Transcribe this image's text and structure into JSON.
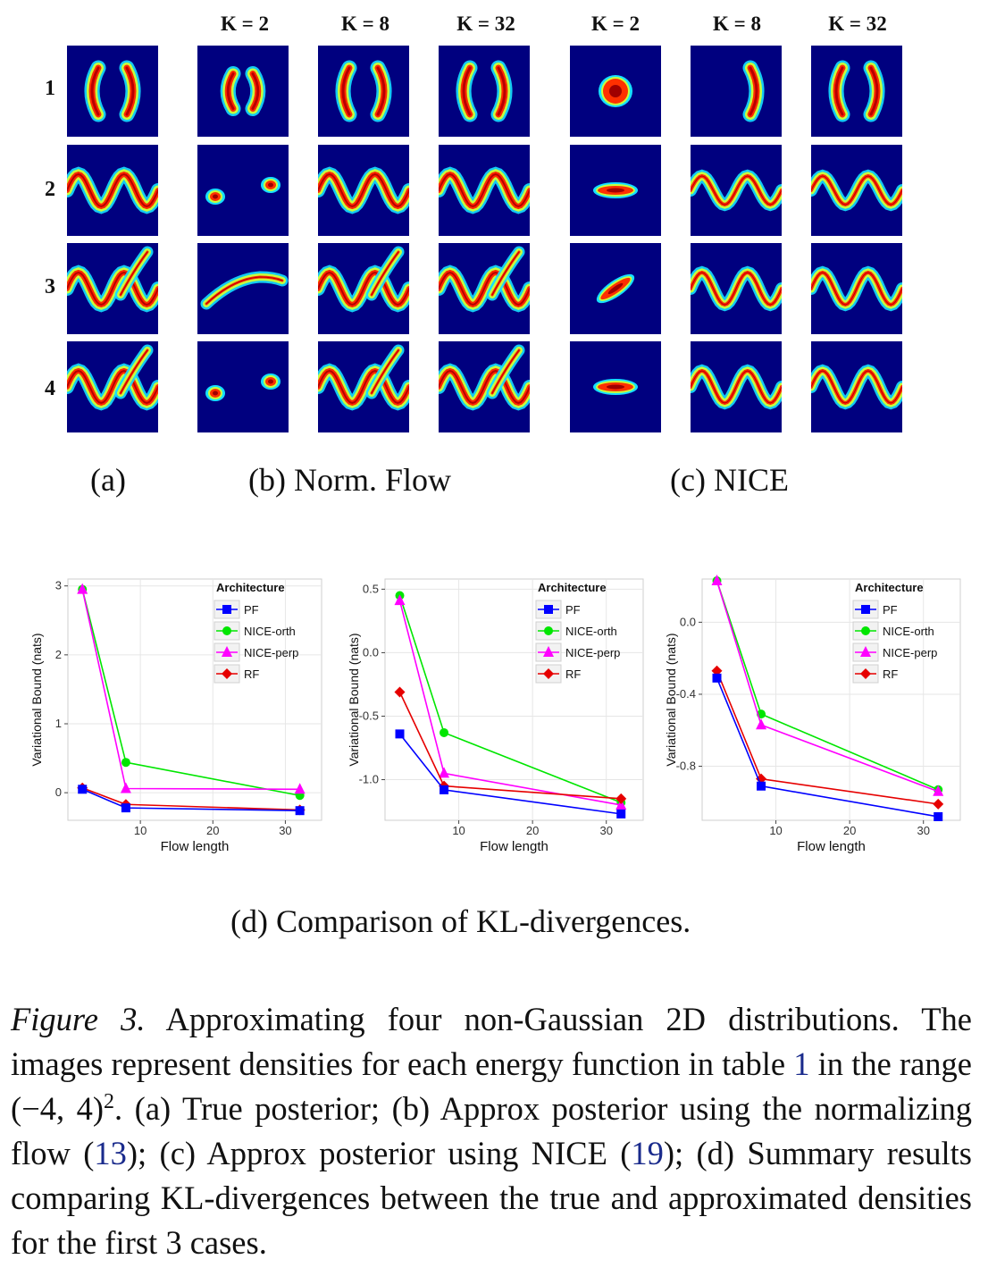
{
  "column_headers": [
    "K = 2",
    "K = 8",
    "K = 32",
    "K = 2",
    "K = 8",
    "K = 32"
  ],
  "row_labels": [
    "1",
    "2",
    "3",
    "4"
  ],
  "sublabels": {
    "a": "(a)",
    "b_tag": "(b)",
    "b_text": "Norm. Flow",
    "c_tag": "(c)",
    "c_text": "NICE",
    "d_tag": "(d)",
    "d_text": "Comparison of KL-divergences."
  },
  "colors": {
    "background": "#00007f",
    "PF": "#0000ff",
    "NICE-orth": "#00e600",
    "NICE-perp": "#ff00ff",
    "RF": "#e60000"
  },
  "chart_data": [
    {
      "type": "line",
      "xlabel": "Flow length",
      "ylabel": "Variational Bound (nats)",
      "legend_title": "Architecture",
      "legend_placement": "top-right",
      "grid": true,
      "xlim": [
        0,
        35
      ],
      "ylim": [
        -0.4,
        3.1
      ],
      "x_ticks": [
        10,
        20,
        30
      ],
      "y_ticks": [
        0,
        1,
        2,
        3
      ],
      "y_tick_labels": [
        "0",
        "1",
        "2",
        "3"
      ],
      "x": [
        2,
        8,
        32
      ],
      "series": [
        {
          "name": "PF",
          "values": [
            0.05,
            -0.22,
            -0.26
          ],
          "marker": "square"
        },
        {
          "name": "NICE-orth",
          "values": [
            2.95,
            0.44,
            -0.04
          ],
          "marker": "circle"
        },
        {
          "name": "NICE-perp",
          "values": [
            2.95,
            0.06,
            0.05
          ],
          "marker": "triangle"
        },
        {
          "name": "RF",
          "values": [
            0.07,
            -0.17,
            -0.25
          ],
          "marker": "diamond"
        }
      ]
    },
    {
      "type": "line",
      "xlabel": "Flow length",
      "ylabel": "Variational Bound (nats)",
      "legend_title": "Architecture",
      "legend_placement": "top-right",
      "grid": true,
      "xlim": [
        0,
        35
      ],
      "ylim": [
        -1.32,
        0.58
      ],
      "x_ticks": [
        10,
        20,
        30
      ],
      "y_ticks": [
        0.5,
        0.0,
        -0.5,
        -1.0
      ],
      "y_tick_labels": [
        "0.5",
        "0.0",
        "-0.5",
        "-1.0"
      ],
      "x": [
        2,
        8,
        32
      ],
      "series": [
        {
          "name": "PF",
          "values": [
            -0.64,
            -1.08,
            -1.27
          ],
          "marker": "square"
        },
        {
          "name": "NICE-orth",
          "values": [
            0.45,
            -0.63,
            -1.18
          ],
          "marker": "circle"
        },
        {
          "name": "NICE-perp",
          "values": [
            0.41,
            -0.95,
            -1.2
          ],
          "marker": "triangle"
        },
        {
          "name": "RF",
          "values": [
            -0.31,
            -1.05,
            -1.15
          ],
          "marker": "diamond"
        }
      ]
    },
    {
      "type": "line",
      "xlabel": "Flow length",
      "ylabel": "Variational Bound (nats)",
      "legend_title": "Architecture",
      "legend_placement": "top-right",
      "grid": true,
      "xlim": [
        0,
        35
      ],
      "ylim": [
        -1.1,
        0.24
      ],
      "x_ticks": [
        10,
        20,
        30
      ],
      "y_ticks": [
        0.0,
        -0.4,
        -0.8
      ],
      "y_tick_labels": [
        "0.0",
        "-0.4",
        "-0.8"
      ],
      "x": [
        2,
        8,
        32
      ],
      "series": [
        {
          "name": "PF",
          "values": [
            -0.31,
            -0.91,
            -1.08
          ],
          "marker": "square"
        },
        {
          "name": "NICE-orth",
          "values": [
            0.23,
            -0.51,
            -0.93
          ],
          "marker": "circle"
        },
        {
          "name": "NICE-perp",
          "values": [
            0.23,
            -0.57,
            -0.94
          ],
          "marker": "triangle"
        },
        {
          "name": "RF",
          "values": [
            -0.27,
            -0.87,
            -1.01
          ],
          "marker": "diamond"
        }
      ]
    }
  ],
  "caption": {
    "fig_label": "Figure 3.",
    "part1": " Approximating four non-Gaussian 2D distributions. The images represent densities for each energy function in table ",
    "ref_table": "1",
    "part2": " in the range (−4, 4)",
    "sup": "2",
    "part3": ". (a) True posterior; (b) Approx posterior using the normalizing flow (",
    "ref_eq1": "13",
    "part4": "); (c) Approx posterior using NICE (",
    "ref_eq2": "19",
    "part5": "); (d) Summary results comparing KL-divergences between the true and approximated densities for the first 3 cases."
  }
}
